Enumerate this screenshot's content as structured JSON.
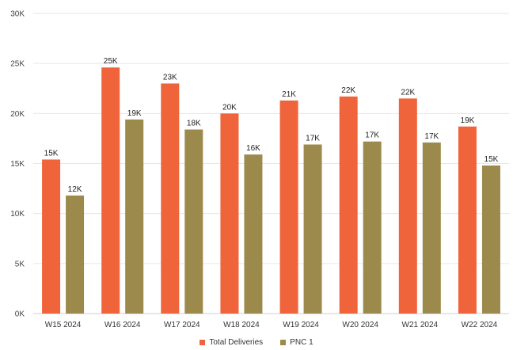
{
  "chart_data": {
    "type": "bar",
    "title": "",
    "xlabel": "",
    "ylabel": "",
    "categories": [
      "W15 2024",
      "W16 2024",
      "W17 2024",
      "W18 2024",
      "W19 2024",
      "W20 2024",
      "W21 2024",
      "W22 2024"
    ],
    "series": [
      {
        "name": "Total Deliveries",
        "color": "#f0643c",
        "values": [
          15400,
          24600,
          23000,
          20000,
          21300,
          21700,
          21500,
          18700
        ],
        "labels": [
          "15K",
          "25K",
          "23K",
          "20K",
          "21K",
          "22K",
          "22K",
          "19K"
        ]
      },
      {
        "name": "PNC 1",
        "color": "#9c8a4c",
        "values": [
          11800,
          19400,
          18400,
          15900,
          16900,
          17200,
          17100,
          14800
        ],
        "labels": [
          "12K",
          "19K",
          "18K",
          "16K",
          "17K",
          "17K",
          "17K",
          "15K"
        ]
      }
    ],
    "ylim": [
      0,
      30000
    ],
    "yticks": [
      0,
      5000,
      10000,
      15000,
      20000,
      25000,
      30000
    ],
    "ytick_labels": [
      "0K",
      "5K",
      "10K",
      "15K",
      "20K",
      "25K",
      "30K"
    ],
    "grid": true,
    "legend_position": "bottom"
  }
}
